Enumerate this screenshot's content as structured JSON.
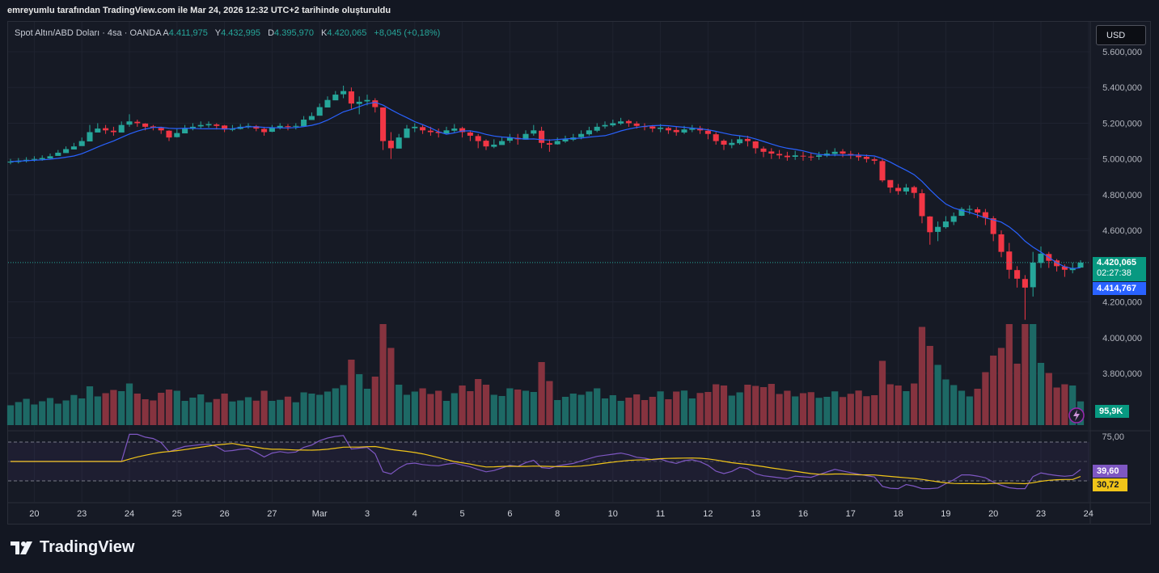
{
  "header": {
    "credit": "emreyumlu tarafından TradingView.com ile Mar 24, 2026 12:32 UTC+2 tarihinde oluşturuldu"
  },
  "legend": {
    "symbol": "Spot Altın/ABD Doları · 4sa · OANDA",
    "open_label": "A",
    "open": "4.411,975",
    "high_label": "Y",
    "high": "4.432,995",
    "low_label": "D",
    "low": "4.395,970",
    "close_label": "K",
    "close": "4.420,065",
    "change": "+8,045 (+0,18%)"
  },
  "currency_button": "USD",
  "price_tags": {
    "last": "4.420,065",
    "countdown": "02:27:38",
    "ma": "4.414,767",
    "volume": "95,9K",
    "rsi": "39,60",
    "rsi_ma": "30,72"
  },
  "colors": {
    "up": "#26a69a",
    "down": "#f23645",
    "ma_line": "#2962ff",
    "rsi_line": "#7e57c2",
    "rsi_ma_line": "#f0c419",
    "background": "#161a25"
  },
  "branding": {
    "name": "TradingView"
  },
  "chart_data": [
    {
      "type": "candlestick",
      "y_tick_labels": [
        "5.600,000",
        "5.400,000",
        "5.200,000",
        "5.000,000",
        "4.800,000",
        "4.600,000",
        "4.200,000",
        "4.000,000",
        "3.800,000"
      ],
      "y_tick_values": [
        5600,
        5400,
        5200,
        5000,
        4800,
        4600,
        4200,
        4000,
        3800
      ],
      "ylim": [
        3700,
        5680
      ],
      "x_tick_labels": [
        "20",
        "23",
        "24",
        "25",
        "26",
        "27",
        "Mar",
        "3",
        "4",
        "5",
        "6",
        "8",
        "10",
        "11",
        "12",
        "13",
        "16",
        "17",
        "18",
        "19",
        "20",
        "23",
        "24"
      ],
      "x_tick_bar_index": [
        3,
        9,
        15,
        21,
        27,
        33,
        39,
        45,
        51,
        57,
        63,
        69,
        76,
        82,
        88,
        94,
        100,
        106,
        112,
        118,
        124,
        130,
        136
      ],
      "closes": [
        4985,
        4990,
        4995,
        5000,
        5005,
        5015,
        5035,
        5055,
        5070,
        5100,
        5150,
        5170,
        5160,
        5150,
        5190,
        5210,
        5200,
        5180,
        5175,
        5160,
        5120,
        5145,
        5170,
        5180,
        5190,
        5195,
        5185,
        5165,
        5170,
        5180,
        5185,
        5170,
        5150,
        5175,
        5185,
        5180,
        5185,
        5220,
        5240,
        5290,
        5330,
        5360,
        5380,
        5310,
        5320,
        5330,
        5290,
        5100,
        5060,
        5120,
        5170,
        5180,
        5160,
        5150,
        5145,
        5160,
        5170,
        5150,
        5130,
        5100,
        5070,
        5080,
        5100,
        5120,
        5110,
        5140,
        5160,
        5090,
        5080,
        5100,
        5110,
        5120,
        5140,
        5160,
        5180,
        5190,
        5200,
        5210,
        5200,
        5185,
        5180,
        5170,
        5175,
        5160,
        5150,
        5165,
        5170,
        5160,
        5140,
        5100,
        5080,
        5090,
        5110,
        5100,
        5060,
        5040,
        5030,
        5020,
        5010,
        5020,
        5015,
        5010,
        5020,
        5030,
        5040,
        5030,
        5020,
        5010,
        5000,
        4990,
        4880,
        4840,
        4820,
        4840,
        4810,
        4680,
        4590,
        4620,
        4650,
        4680,
        4720,
        4720,
        4700,
        4670,
        4580,
        4480,
        4380,
        4330,
        4280,
        4420,
        4470,
        4430,
        4400,
        4380,
        4390,
        4420
      ],
      "highs": [
        5000,
        5005,
        5010,
        5015,
        5020,
        5030,
        5050,
        5070,
        5090,
        5120,
        5190,
        5200,
        5190,
        5180,
        5210,
        5250,
        5220,
        5200,
        5190,
        5180,
        5160,
        5170,
        5190,
        5200,
        5210,
        5210,
        5200,
        5190,
        5190,
        5195,
        5200,
        5190,
        5180,
        5190,
        5200,
        5195,
        5200,
        5240,
        5260,
        5310,
        5350,
        5380,
        5410,
        5400,
        5350,
        5360,
        5340,
        5280,
        5150,
        5140,
        5190,
        5200,
        5190,
        5180,
        5170,
        5180,
        5195,
        5180,
        5160,
        5140,
        5110,
        5110,
        5120,
        5140,
        5140,
        5160,
        5190,
        5180,
        5110,
        5120,
        5130,
        5140,
        5160,
        5180,
        5200,
        5210,
        5220,
        5230,
        5220,
        5210,
        5200,
        5190,
        5195,
        5180,
        5180,
        5185,
        5190,
        5185,
        5170,
        5150,
        5110,
        5110,
        5130,
        5130,
        5100,
        5070,
        5060,
        5050,
        5040,
        5045,
        5040,
        5035,
        5040,
        5050,
        5060,
        5055,
        5045,
        5035,
        5025,
        5010,
        5000,
        4880,
        4860,
        4860,
        4850,
        4830,
        4680,
        4650,
        4680,
        4700,
        4730,
        4740,
        4730,
        4720,
        4680,
        4600,
        4530,
        4400,
        4350,
        4480,
        4510,
        4480,
        4440,
        4410,
        4420,
        4433
      ],
      "lows": [
        4970,
        4975,
        4980,
        4985,
        4990,
        5000,
        5020,
        5040,
        5055,
        5080,
        5130,
        5150,
        5140,
        5130,
        5150,
        5180,
        5180,
        5160,
        5160,
        5140,
        5100,
        5120,
        5150,
        5160,
        5170,
        5175,
        5165,
        5150,
        5155,
        5165,
        5170,
        5155,
        5130,
        5150,
        5165,
        5160,
        5165,
        5190,
        5220,
        5260,
        5300,
        5330,
        5340,
        5280,
        5250,
        5300,
        5260,
        5050,
        5000,
        5080,
        5140,
        5150,
        5140,
        5130,
        5120,
        5140,
        5145,
        5120,
        5100,
        5060,
        5050,
        5060,
        5080,
        5090,
        5080,
        5110,
        5130,
        5060,
        5040,
        5080,
        5090,
        5100,
        5110,
        5130,
        5150,
        5170,
        5180,
        5190,
        5180,
        5170,
        5160,
        5150,
        5150,
        5140,
        5130,
        5140,
        5150,
        5140,
        5110,
        5080,
        5050,
        5060,
        5080,
        5070,
        5030,
        5010,
        5000,
        5000,
        4990,
        4995,
        4990,
        4990,
        4995,
        5010,
        5015,
        5010,
        5000,
        4990,
        4980,
        4970,
        4870,
        4810,
        4800,
        4800,
        4780,
        4640,
        4520,
        4540,
        4610,
        4630,
        4680,
        4690,
        4670,
        4630,
        4540,
        4450,
        4330,
        4280,
        4100,
        4230,
        4390,
        4390,
        4370,
        4340,
        4360,
        4396
      ],
      "ma_note": "",
      "volume_label": "95,9K"
    },
    {
      "type": "line",
      "y_tick_labels": [
        "75,00"
      ],
      "y_tick_values": [
        75
      ],
      "ylim": [
        20,
        80
      ],
      "series": [
        {
          "values_rsi": true,
          "current": 39.6
        },
        {
          "values_rsi_ma": true,
          "current": 30.72
        }
      ]
    }
  ]
}
